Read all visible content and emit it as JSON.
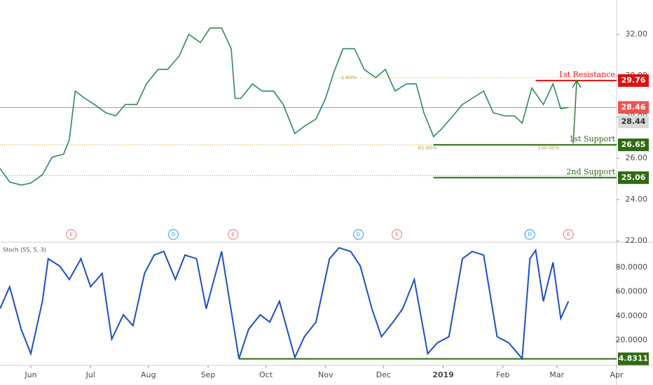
{
  "chart_data": [
    {
      "type": "line",
      "x": [
        0,
        5,
        11,
        16,
        22,
        27,
        33,
        36,
        39,
        44,
        49,
        55,
        60,
        65,
        71,
        76,
        82,
        87,
        93,
        98,
        104,
        109,
        115,
        120,
        122,
        125,
        131,
        136,
        142,
        147,
        153,
        158,
        164,
        169,
        173,
        178,
        184,
        189,
        195,
        200,
        205,
        211,
        216,
        220,
        225,
        229,
        235,
        240,
        245,
        251,
        256,
        262,
        267,
        271,
        276,
        282,
        287,
        291,
        295
      ],
      "series": [
        {
          "color": "#2e8b57",
          "values": [
            25.5,
            24.85,
            24.7,
            24.8,
            25.2,
            26.05,
            26.2,
            26.9,
            29.25,
            28.9,
            28.6,
            28.2,
            28.05,
            28.6,
            28.6,
            29.6,
            30.3,
            30.3,
            30.95,
            32.0,
            31.6,
            32.3,
            32.3,
            31.3,
            28.9,
            28.9,
            29.6,
            29.25,
            29.25,
            28.6,
            27.2,
            27.55,
            27.9,
            28.9,
            30.1,
            31.3,
            31.3,
            30.3,
            29.9,
            30.3,
            29.25,
            29.6,
            29.6,
            28.2,
            27.05,
            27.4,
            28.05,
            28.6,
            28.9,
            29.25,
            28.2,
            28.05,
            28.05,
            27.7,
            29.4,
            28.6,
            29.6,
            28.4,
            28.46
          ]
        }
      ],
      "xlim": [
        0,
        320
      ],
      "ylim": [
        21.97,
        33.66
      ],
      "yticks": [
        {
          "value": 32,
          "label": "32.00"
        },
        {
          "value": 30,
          "label": "30.00"
        },
        {
          "value": 28,
          "label": "28.00"
        },
        {
          "value": 26,
          "label": "26.00"
        },
        {
          "value": 24,
          "label": "24.00"
        },
        {
          "value": 22,
          "label": "22.00"
        }
      ],
      "levels": [
        {
          "label": "1st Resistance",
          "value": 29.76,
          "color": "#e01010",
          "start": 278
        },
        {
          "label": "1st Support",
          "value": 26.65,
          "color": "#2e6b12",
          "start": 225
        },
        {
          "label": "2nd Support",
          "value": 25.06,
          "color": "#2e6b12",
          "start": 225
        }
      ],
      "price_labels": [
        {
          "value": 28.46,
          "color": "#ef5350"
        },
        {
          "value": 28.44,
          "color": "#d9d9d9"
        }
      ],
      "fib_labels": [
        {
          "label": "1.60%",
          "x": 177,
          "y": 29.9
        },
        {
          "label": "61.80%",
          "x": 217,
          "y": 26.5
        },
        {
          "label": "100.00%",
          "x": 279,
          "y": 26.5
        }
      ],
      "events": [
        {
          "label": "E",
          "x": 37
        },
        {
          "label": "D",
          "x": 90
        },
        {
          "label": "E",
          "x": 121
        },
        {
          "label": "D",
          "x": 186
        },
        {
          "label": "E",
          "x": 206
        },
        {
          "label": "D",
          "x": 275
        },
        {
          "label": "E",
          "x": 295
        }
      ]
    },
    {
      "type": "line",
      "title": "Stoch (55, 5, 3)",
      "x": [
        0,
        5,
        11,
        16,
        22,
        25,
        31,
        36,
        42,
        47,
        53,
        58,
        64,
        69,
        75,
        80,
        85,
        91,
        96,
        102,
        107,
        115,
        124,
        129,
        135,
        140,
        145,
        153,
        158,
        164,
        171,
        176,
        182,
        187,
        193,
        198,
        204,
        209,
        215,
        222,
        227,
        233,
        240,
        245,
        251,
        258,
        264,
        271,
        275,
        278,
        282,
        287,
        291,
        295
      ],
      "series": [
        {
          "color": "#1e4fc2",
          "values": [
            46,
            64,
            29,
            9,
            52,
            87,
            81,
            70,
            87,
            64,
            75,
            21,
            41,
            32,
            75,
            90,
            93,
            70,
            90,
            87,
            46,
            93,
            5,
            29,
            41,
            35,
            52,
            6,
            23,
            35,
            87,
            96,
            93,
            81,
            46,
            23,
            35,
            46,
            70,
            9,
            18,
            23,
            87,
            93,
            90,
            23,
            18,
            5,
            87,
            94,
            52,
            84,
            38,
            52
          ]
        }
      ],
      "xlim": [
        0,
        320
      ],
      "ylim": [
        0,
        100
      ],
      "yticks": [
        {
          "value": 80,
          "label": "80.0000"
        },
        {
          "value": 60,
          "label": "60.0000"
        },
        {
          "value": 40,
          "label": "40.0000"
        },
        {
          "value": 20,
          "label": "20.0000"
        }
      ],
      "levels": [
        {
          "value": 4.8311,
          "color": "#2e6b12",
          "start": 124
        }
      ],
      "xticks": [
        {
          "value": 16,
          "label": "Jun"
        },
        {
          "value": 47,
          "label": "Jul"
        },
        {
          "value": 77,
          "label": "Aug"
        },
        {
          "value": 108,
          "label": "Sep"
        },
        {
          "value": 138,
          "label": "Oct"
        },
        {
          "value": 169,
          "label": "Nov"
        },
        {
          "value": 199,
          "label": "Dec"
        },
        {
          "value": 230,
          "label": "2019"
        },
        {
          "value": 261,
          "label": "Feb"
        },
        {
          "value": 289,
          "label": "Mar"
        },
        {
          "value": 320,
          "label": "Apr"
        }
      ]
    }
  ]
}
